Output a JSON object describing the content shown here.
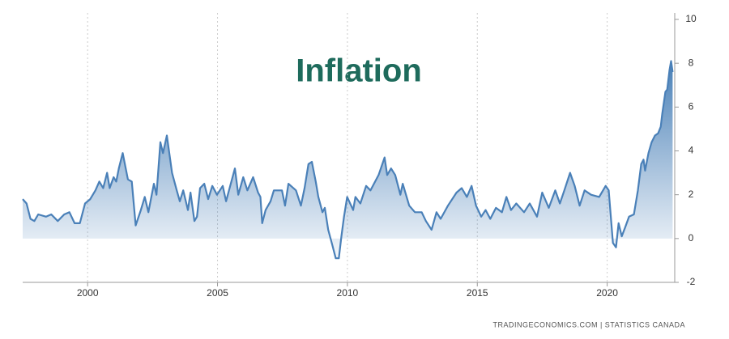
{
  "chart_data": {
    "type": "area",
    "title": "Inflation",
    "source": "TRADINGECONOMICS.COM  |  STATISTICS CANADA",
    "color": "#4a80b8",
    "grid": true,
    "xlim": [
      1997.5,
      2022.6
    ],
    "xticks": [
      2000,
      2005,
      2010,
      2015,
      2020
    ],
    "ylim": [
      -2,
      10
    ],
    "yticks": [
      -2,
      0,
      2,
      4,
      6,
      8,
      10
    ],
    "x": [
      1997.5,
      1997.65,
      1997.8,
      1997.95,
      1998.1,
      1998.4,
      1998.6,
      1998.85,
      1999.1,
      1999.3,
      1999.5,
      1999.7,
      1999.9,
      2000.1,
      2000.3,
      2000.45,
      2000.6,
      2000.75,
      2000.85,
      2001.0,
      2001.1,
      2001.2,
      2001.35,
      2001.55,
      2001.7,
      2001.85,
      2002.05,
      2002.2,
      2002.34,
      2002.55,
      2002.65,
      2002.8,
      2002.9,
      2003.05,
      2003.25,
      2003.43,
      2003.55,
      2003.68,
      2003.86,
      2003.96,
      2004.11,
      2004.21,
      2004.33,
      2004.49,
      2004.64,
      2004.8,
      2004.98,
      2005.2,
      2005.33,
      2005.51,
      2005.67,
      2005.8,
      2005.99,
      2006.15,
      2006.37,
      2006.56,
      2006.65,
      2006.72,
      2006.85,
      2007.04,
      2007.17,
      2007.48,
      2007.6,
      2007.73,
      2008.02,
      2008.21,
      2008.35,
      2008.5,
      2008.63,
      2008.78,
      2008.88,
      2009.04,
      2009.13,
      2009.26,
      2009.42,
      2009.55,
      2009.67,
      2009.77,
      2009.87,
      2009.99,
      2010.22,
      2010.31,
      2010.5,
      2010.72,
      2010.89,
      2011.2,
      2011.43,
      2011.53,
      2011.68,
      2011.84,
      2012.04,
      2012.13,
      2012.38,
      2012.6,
      2012.86,
      2013.02,
      2013.24,
      2013.43,
      2013.59,
      2013.87,
      2014.2,
      2014.4,
      2014.6,
      2014.78,
      2014.95,
      2015.15,
      2015.32,
      2015.5,
      2015.72,
      2015.95,
      2016.12,
      2016.3,
      2016.5,
      2016.8,
      2017.02,
      2017.3,
      2017.5,
      2017.75,
      2018.0,
      2018.18,
      2018.35,
      2018.57,
      2018.75,
      2018.94,
      2019.13,
      2019.38,
      2019.69,
      2019.94,
      2020.06,
      2020.22,
      2020.34,
      2020.44,
      2020.56,
      2020.69,
      2020.84,
      2021.03,
      2021.18,
      2021.31,
      2021.4,
      2021.46,
      2021.59,
      2021.71,
      2021.84,
      2021.96,
      2022.06,
      2022.12,
      2022.24,
      2022.31,
      2022.4,
      2022.46,
      2022.52
    ],
    "values": [
      1.8,
      1.6,
      0.9,
      0.8,
      1.1,
      1.0,
      1.1,
      0.8,
      1.1,
      1.2,
      0.7,
      0.7,
      1.6,
      1.8,
      2.2,
      2.6,
      2.3,
      3.0,
      2.3,
      2.8,
      2.6,
      3.2,
      3.9,
      2.7,
      2.6,
      0.6,
      1.3,
      1.9,
      1.2,
      2.5,
      2.0,
      4.4,
      3.9,
      4.7,
      3.0,
      2.2,
      1.7,
      2.2,
      1.3,
      2.1,
      0.8,
      1.0,
      2.3,
      2.5,
      1.8,
      2.4,
      2.0,
      2.4,
      1.7,
      2.5,
      3.2,
      2.0,
      2.8,
      2.2,
      2.8,
      2.1,
      1.9,
      0.7,
      1.3,
      1.7,
      2.2,
      2.2,
      1.5,
      2.5,
      2.2,
      1.5,
      2.3,
      3.4,
      3.5,
      2.6,
      1.9,
      1.2,
      1.4,
      0.4,
      -0.3,
      -0.9,
      -0.9,
      0.1,
      1.0,
      1.9,
      1.3,
      1.9,
      1.6,
      2.4,
      2.2,
      2.9,
      3.7,
      2.9,
      3.2,
      2.9,
      2.0,
      2.5,
      1.5,
      1.2,
      1.2,
      0.8,
      0.4,
      1.2,
      0.9,
      1.5,
      2.1,
      2.3,
      1.9,
      2.4,
      1.5,
      1.0,
      1.3,
      0.9,
      1.4,
      1.2,
      1.9,
      1.3,
      1.6,
      1.2,
      1.6,
      1.0,
      2.1,
      1.4,
      2.2,
      1.6,
      2.2,
      3.0,
      2.4,
      1.5,
      2.2,
      2.0,
      1.9,
      2.4,
      2.2,
      -0.2,
      -0.4,
      0.7,
      0.1,
      0.5,
      1.0,
      1.1,
      2.2,
      3.4,
      3.6,
      3.1,
      3.9,
      4.4,
      4.7,
      4.8,
      5.1,
      5.7,
      6.7,
      6.8,
      7.7,
      8.1,
      7.6
    ]
  }
}
